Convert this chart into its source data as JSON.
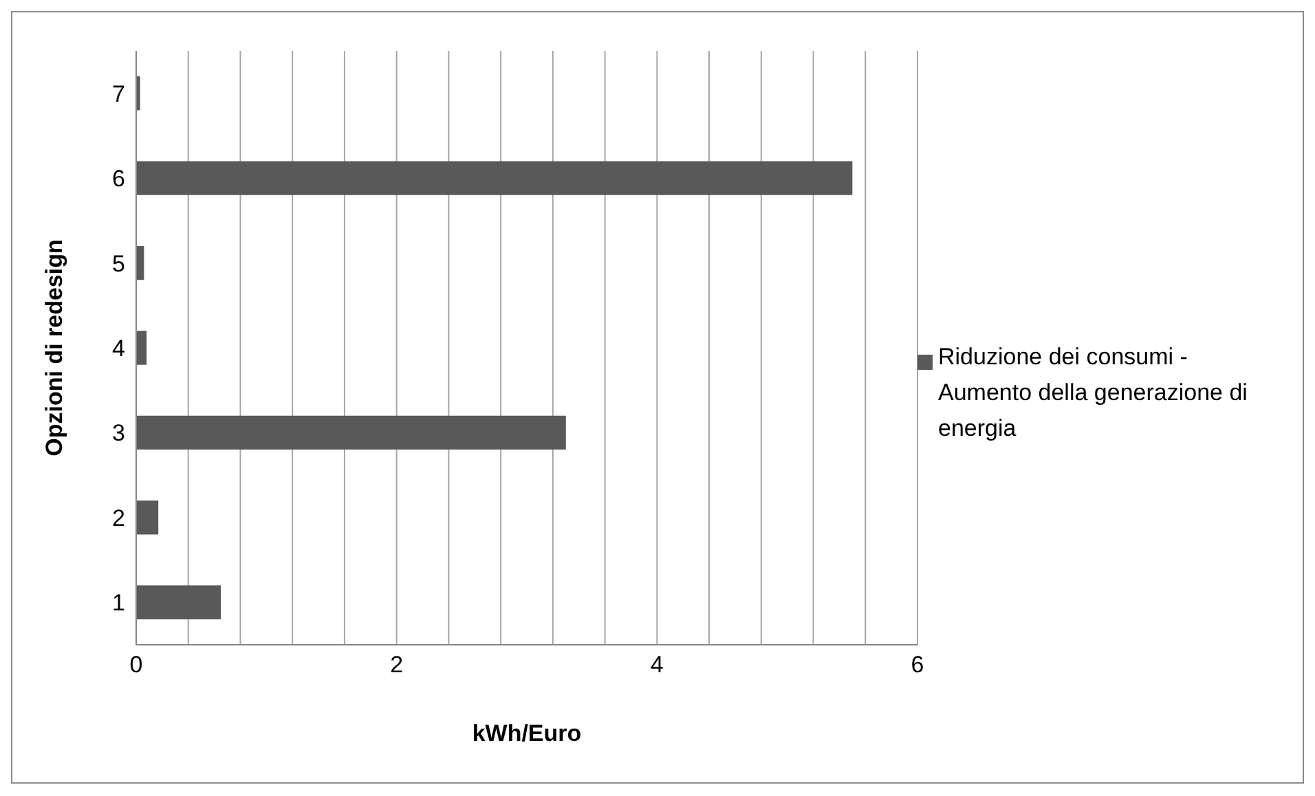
{
  "chart_data": {
    "type": "bar",
    "orientation": "horizontal",
    "xlabel": "kWh/Euro",
    "ylabel": "Opzioni di redesign",
    "categories": [
      "7",
      "6",
      "5",
      "4",
      "3",
      "2",
      "1"
    ],
    "series": [
      {
        "name": "Riduzione dei consumi - Aumento della generazione di energia",
        "color": "#595959",
        "values": [
          0.03,
          5.5,
          0.06,
          0.08,
          3.3,
          0.17,
          0.65
        ]
      }
    ],
    "xlim": [
      0,
      6
    ],
    "xticks": [
      0,
      {
        "value": 0.4,
        "label": null
      },
      {
        "value": 0.8,
        "label": null
      },
      {
        "value": 1.2,
        "label": null
      },
      {
        "value": 1.6,
        "label": null
      },
      2,
      {
        "value": 2.4,
        "label": null
      },
      {
        "value": 2.8,
        "label": null
      },
      {
        "value": 3.2,
        "label": null
      },
      {
        "value": 3.6,
        "label": null
      },
      4,
      {
        "value": 4.4,
        "label": null
      },
      {
        "value": 4.8,
        "label": null
      },
      {
        "value": 5.2,
        "label": null
      },
      {
        "value": 5.6,
        "label": null
      },
      6
    ],
    "grid": "x",
    "legend": "right"
  }
}
